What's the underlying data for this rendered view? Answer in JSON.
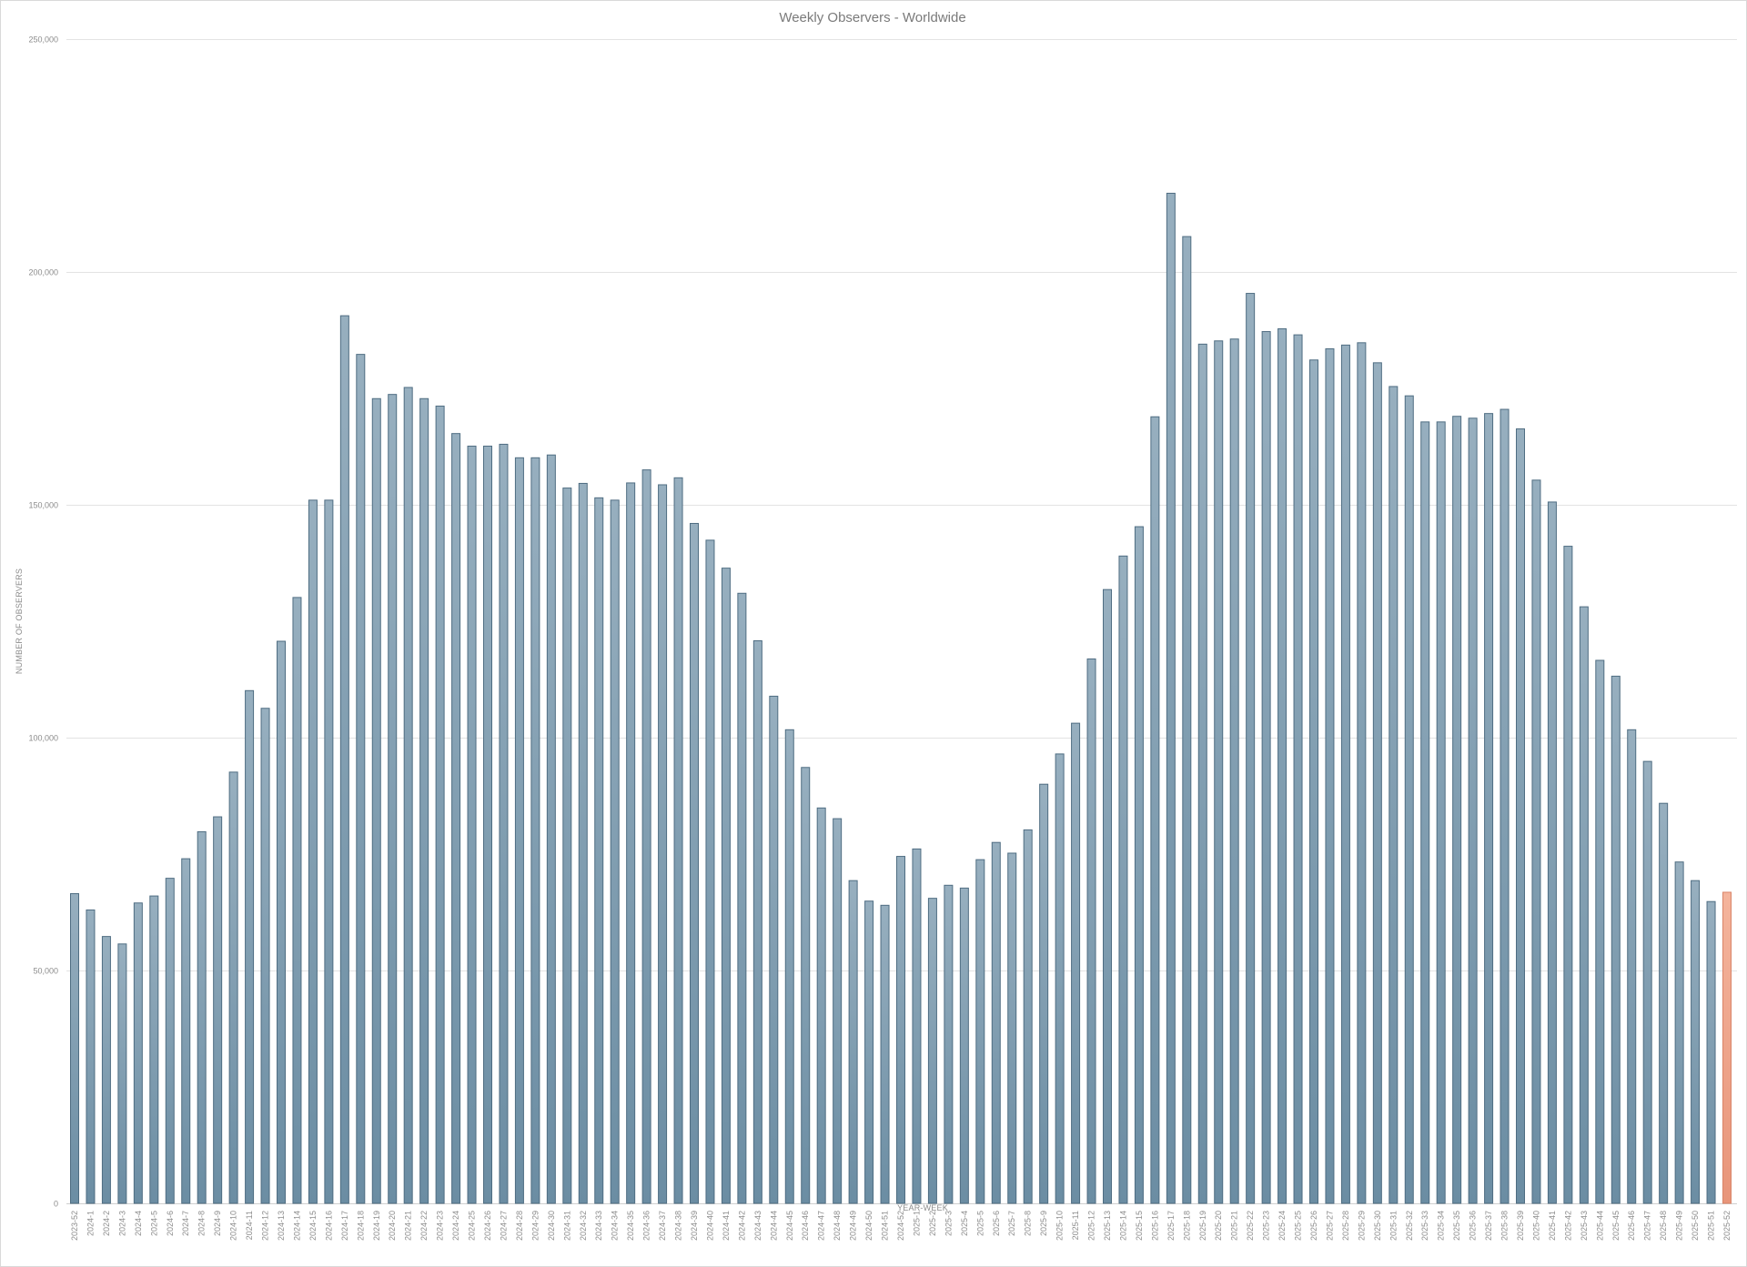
{
  "chart_data": {
    "type": "bar",
    "title": "Weekly Observers - Worldwide",
    "xlabel": "YEAR-WEEK",
    "ylabel": "NUMBER OF OBSERVERS",
    "ylim": [
      0,
      250000
    ],
    "yticks": [
      0,
      50000,
      100000,
      150000,
      200000,
      250000
    ],
    "ytick_labels": [
      "0",
      "50,000",
      "100,000",
      "150,000",
      "200,000",
      "250,000"
    ],
    "grid": true,
    "legend": "none",
    "colors": {
      "bar_top": "#97afbf",
      "bar_bottom": "#6b8da3",
      "bar_stroke": "#4f6d82",
      "highlight_top": "#f4b49c",
      "highlight_bottom": "#e8957a",
      "highlight_stroke": "#d98468"
    },
    "highlight_category": "2025-52",
    "categories": [
      "2023-52",
      "2024-1",
      "2024-2",
      "2024-3",
      "2024-4",
      "2024-5",
      "2024-6",
      "2024-7",
      "2024-8",
      "2024-9",
      "2024-10",
      "2024-11",
      "2024-12",
      "2024-13",
      "2024-14",
      "2024-15",
      "2024-16",
      "2024-17",
      "2024-18",
      "2024-19",
      "2024-20",
      "2024-21",
      "2024-22",
      "2024-23",
      "2024-24",
      "2024-25",
      "2024-26",
      "2024-27",
      "2024-28",
      "2024-29",
      "2024-30",
      "2024-31",
      "2024-32",
      "2024-33",
      "2024-34",
      "2024-35",
      "2024-36",
      "2024-37",
      "2024-38",
      "2024-39",
      "2024-40",
      "2024-41",
      "2024-42",
      "2024-43",
      "2024-44",
      "2024-45",
      "2024-46",
      "2024-47",
      "2024-48",
      "2024-49",
      "2024-50",
      "2024-51",
      "2024-52",
      "2025-1",
      "2025-2",
      "2025-3",
      "2025-4",
      "2025-5",
      "2025-6",
      "2025-7",
      "2025-8",
      "2025-9",
      "2025-10",
      "2025-11",
      "2025-12",
      "2025-13",
      "2025-14",
      "2025-15",
      "2025-16",
      "2025-17",
      "2025-18",
      "2025-19",
      "2025-20",
      "2025-21",
      "2025-22",
      "2025-23",
      "2025-24",
      "2025-25",
      "2025-26",
      "2025-27",
      "2025-28",
      "2025-29",
      "2025-30",
      "2025-31",
      "2025-32",
      "2025-33",
      "2025-34",
      "2025-35",
      "2025-36",
      "2025-37",
      "2025-38",
      "2025-39",
      "2025-40",
      "2025-41",
      "2025-42",
      "2025-43",
      "2025-44",
      "2025-45",
      "2025-46",
      "2025-47",
      "2025-48",
      "2025-49",
      "2025-50",
      "2025-51",
      "2025-52"
    ],
    "values": [
      66500,
      63000,
      57300,
      55700,
      64500,
      66000,
      69800,
      74000,
      79800,
      83000,
      92600,
      110100,
      106300,
      120700,
      130100,
      151000,
      151000,
      190600,
      182300,
      172800,
      173700,
      175200,
      172800,
      171200,
      165300,
      162600,
      162600,
      163000,
      160100,
      160100,
      160700,
      153600,
      154600,
      151500,
      151000,
      154700,
      157500,
      154300,
      155800,
      146000,
      142400,
      136400,
      131000,
      120800,
      108900,
      101700,
      93600,
      84900,
      82600,
      69300,
      64900,
      64000,
      74500,
      76100,
      65500,
      68300,
      67700,
      73800,
      77500,
      75200,
      80200,
      90000,
      96500,
      103100,
      116900,
      131800,
      139000,
      145300,
      168900,
      216900,
      207600,
      184500,
      185200,
      185600,
      195400,
      187200,
      187800,
      186500,
      181100,
      183500,
      184300,
      184800,
      180500,
      175400,
      173400,
      167800,
      167800,
      169000,
      168600,
      169600,
      170500,
      166300,
      155300,
      150600,
      141100,
      128100,
      116600,
      113200,
      101700,
      94900,
      85900,
      73300,
      69300,
      64800,
      66800
    ]
  }
}
